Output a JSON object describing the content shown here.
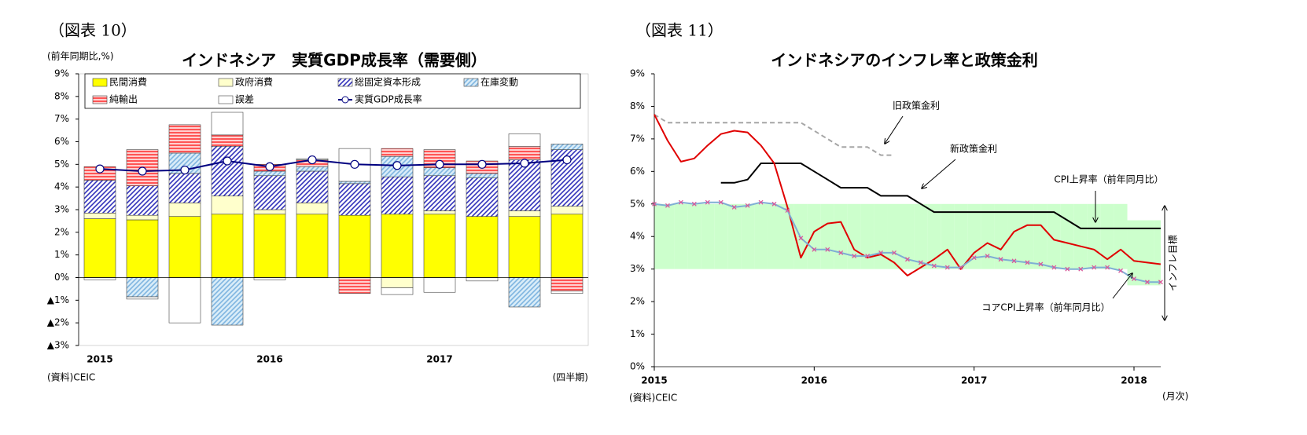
{
  "chart_data": [
    {
      "type": "bar",
      "figure_label": "（図表 10）",
      "title": "インドネシア　実質GDP成長率（需要側）",
      "y_unit": "(前年同期比,%)",
      "source": "(資料)CEIC",
      "x_unit": "(四半期)",
      "categories": [
        "2015",
        null,
        null,
        null,
        "2016",
        null,
        null,
        null,
        "2017",
        null,
        null,
        null
      ],
      "series": [
        {
          "name": "民間消費",
          "color": "#ffff00",
          "values": [
            2.6,
            2.55,
            2.7,
            2.8,
            2.8,
            2.8,
            2.75,
            2.8,
            2.8,
            2.7,
            2.7,
            2.8
          ]
        },
        {
          "name": "政府消費",
          "color": "#ffffcc",
          "values": [
            0.25,
            0.2,
            0.6,
            0.8,
            0.2,
            0.5,
            0,
            -0.45,
            0.15,
            0,
            0.25,
            0.35
          ]
        },
        {
          "name": "総固定資本形成",
          "color": "#3333bb",
          "background": "#ffffff",
          "hatch": "diagonal",
          "values": [
            1.45,
            1.3,
            1.3,
            2.2,
            1.5,
            1.4,
            1.4,
            1.65,
            1.55,
            1.7,
            2.25,
            2.5
          ]
        },
        {
          "name": "在庫変動",
          "color": "#7fb5e0",
          "background": "#d9ecf8",
          "hatch": "diagonal",
          "values": [
            0,
            -0.85,
            0.9,
            -2.1,
            0.2,
            0.2,
            0.1,
            0.9,
            0.35,
            0.2,
            -1.3,
            0.25
          ]
        },
        {
          "name": "純輸出",
          "color": "#ff5555",
          "background": "#ffd0d0",
          "hatch": "horizontal",
          "values": [
            0.6,
            1.6,
            1.25,
            0.5,
            0.3,
            0.3,
            -0.7,
            0.35,
            0.8,
            0.55,
            0.6,
            -0.6
          ]
        },
        {
          "name": "誤差",
          "color": "#ffffff",
          "values": [
            -0.1,
            -0.1,
            -2.0,
            1.0,
            -0.1,
            0.05,
            1.45,
            -0.3,
            -0.65,
            -0.15,
            0.55,
            -0.1
          ]
        },
        {
          "name": "実質GDP成長率",
          "type": "line",
          "color": "#000080",
          "marker": "circle",
          "values": [
            4.8,
            4.7,
            4.75,
            5.15,
            4.9,
            5.2,
            5.0,
            4.95,
            5.0,
            5.0,
            5.05,
            5.2
          ]
        }
      ],
      "ylim": [
        -3,
        9
      ],
      "yticks": [
        {
          "value": 9,
          "label": "9%"
        },
        {
          "value": 8,
          "label": "8%"
        },
        {
          "value": 7,
          "label": "7%"
        },
        {
          "value": 6,
          "label": "6%"
        },
        {
          "value": 5,
          "label": "5%"
        },
        {
          "value": 4,
          "label": "4%"
        },
        {
          "value": 3,
          "label": "3%"
        },
        {
          "value": 2,
          "label": "2%"
        },
        {
          "value": 1,
          "label": "1%"
        },
        {
          "value": 0,
          "label": "0%"
        },
        {
          "value": -1,
          "label": "▲1%"
        },
        {
          "value": -2,
          "label": "▲2%"
        },
        {
          "value": -3,
          "label": "▲3%"
        }
      ],
      "legend": "top"
    },
    {
      "type": "line",
      "figure_label": "（図表 11）",
      "title": "インドネシアのインフレ率と政策金利",
      "source": "(資料)CEIC",
      "x_unit": "(月次)",
      "categories": [
        "2015",
        null,
        null,
        null,
        null,
        null,
        null,
        null,
        null,
        null,
        null,
        null,
        "2016",
        null,
        null,
        null,
        null,
        null,
        null,
        null,
        null,
        null,
        null,
        null,
        "2017",
        null,
        null,
        null,
        null,
        null,
        null,
        null,
        null,
        null,
        null,
        null,
        "2018",
        null,
        null
      ],
      "series": [
        {
          "name": "旧政策金利",
          "color": "#a6a6a6",
          "line_style": "dashed",
          "values": [
            7.75,
            7.5,
            7.5,
            7.5,
            7.5,
            7.5,
            7.5,
            7.5,
            7.5,
            7.5,
            7.5,
            7.5,
            7.25,
            7.0,
            6.75,
            6.75,
            6.75,
            6.5,
            6.5,
            null,
            null,
            null,
            null,
            null,
            null,
            null,
            null,
            null,
            null,
            null,
            null,
            null,
            null,
            null,
            null,
            null,
            null,
            null,
            null
          ]
        },
        {
          "name": "新政策金利",
          "color": "#000000",
          "values": [
            null,
            null,
            null,
            null,
            null,
            5.65,
            5.65,
            5.75,
            6.25,
            6.25,
            6.25,
            6.25,
            6.0,
            5.75,
            5.5,
            5.5,
            5.5,
            5.25,
            5.25,
            5.25,
            5.0,
            4.75,
            4.75,
            4.75,
            4.75,
            4.75,
            4.75,
            4.75,
            4.75,
            4.75,
            4.75,
            4.5,
            4.25,
            4.25,
            4.25,
            4.25,
            4.25,
            4.25,
            4.25
          ]
        },
        {
          "name": "CPI上昇率（前年同月比）",
          "color": "#e00000",
          "values": [
            7.75,
            6.95,
            6.3,
            6.4,
            6.8,
            7.15,
            7.25,
            7.2,
            6.8,
            6.25,
            4.9,
            3.35,
            4.15,
            4.4,
            4.45,
            3.6,
            3.35,
            3.45,
            3.2,
            2.8,
            3.05,
            3.3,
            3.6,
            3.0,
            3.5,
            3.8,
            3.6,
            4.15,
            4.35,
            4.35,
            3.9,
            3.8,
            3.7,
            3.6,
            3.3,
            3.6,
            3.25,
            3.2,
            3.15
          ]
        },
        {
          "name": "コアCPI上昇率（前年同月比）",
          "color": "#7faed4",
          "marker": "x",
          "marker_color": "#d9589a",
          "values": [
            5.0,
            4.95,
            5.05,
            5.0,
            5.05,
            5.05,
            4.9,
            4.95,
            5.05,
            5.0,
            4.8,
            3.95,
            3.6,
            3.6,
            3.5,
            3.4,
            3.4,
            3.5,
            3.5,
            3.3,
            3.2,
            3.1,
            3.05,
            3.05,
            3.35,
            3.4,
            3.3,
            3.25,
            3.2,
            3.15,
            3.05,
            3.0,
            3.0,
            3.05,
            3.05,
            2.95,
            2.7,
            2.6,
            2.6
          ]
        }
      ],
      "band": {
        "name": "インフレ目標",
        "color": "#ccffcc",
        "lower": [
          3,
          3,
          3,
          3,
          3,
          3,
          3,
          3,
          3,
          3,
          3,
          3,
          3,
          3,
          3,
          3,
          3,
          3,
          3,
          3,
          3,
          3,
          3,
          3,
          3,
          3,
          3,
          3,
          3,
          3,
          3,
          3,
          3,
          3,
          3,
          3,
          2.5,
          2.5,
          2.5
        ],
        "upper": [
          5,
          5,
          5,
          5,
          5,
          5,
          5,
          5,
          5,
          5,
          5,
          5,
          5,
          5,
          5,
          5,
          5,
          5,
          5,
          5,
          5,
          5,
          5,
          5,
          5,
          5,
          5,
          5,
          5,
          5,
          5,
          5,
          5,
          5,
          5,
          5,
          4.5,
          4.5,
          4.5
        ]
      },
      "ylim": [
        0,
        9
      ],
      "yticks": [
        {
          "value": 0,
          "label": "0%"
        },
        {
          "value": 1,
          "label": "1%"
        },
        {
          "value": 2,
          "label": "2%"
        },
        {
          "value": 3,
          "label": "3%"
        },
        {
          "value": 4,
          "label": "4%"
        },
        {
          "value": 5,
          "label": "5%"
        },
        {
          "value": 6,
          "label": "6%"
        },
        {
          "value": 7,
          "label": "7%"
        },
        {
          "value": 8,
          "label": "8%"
        },
        {
          "value": 9,
          "label": "9%"
        }
      ]
    }
  ]
}
